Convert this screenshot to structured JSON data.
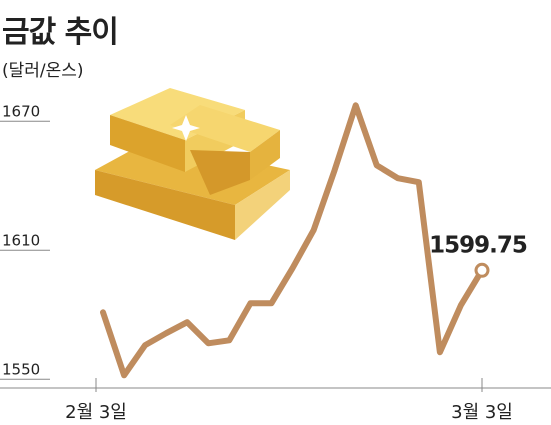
{
  "chart_data": {
    "type": "line",
    "title": "금값 추이",
    "subtitle": "(달러/온스)",
    "categories": [
      "2월 3일",
      null,
      null,
      null,
      null,
      null,
      null,
      null,
      null,
      null,
      null,
      null,
      null,
      null,
      null,
      null,
      null,
      null,
      "3월 3일"
    ],
    "values": [
      1580.2,
      1550.9,
      1564.9,
      1570.5,
      1575.6,
      1565.8,
      1567.2,
      1584.4,
      1584.4,
      1600.7,
      1618.4,
      1646.3,
      1676.5,
      1648.6,
      1642.6,
      1640.7,
      1561.6,
      1583.5,
      1599.75
    ],
    "color": "#bf8c5e",
    "ylim": [
      1545,
      1685
    ],
    "yticks": [
      1550,
      1610,
      1670
    ]
  }
}
